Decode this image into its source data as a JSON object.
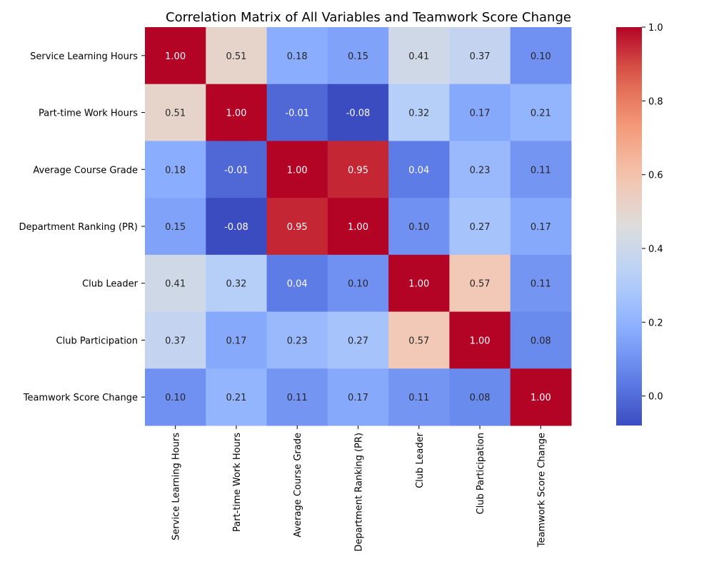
{
  "chart_data": {
    "type": "heatmap",
    "title": "Correlation Matrix of All Variables and Teamwork Score Change",
    "variables": [
      "Service Learning Hours",
      "Part-time Work Hours",
      "Average Course Grade",
      "Department Ranking (PR)",
      "Club Leader",
      "Club Participation",
      "Teamwork Score Change"
    ],
    "matrix": [
      [
        1.0,
        0.51,
        0.18,
        0.15,
        0.41,
        0.37,
        0.1
      ],
      [
        0.51,
        1.0,
        -0.01,
        -0.08,
        0.32,
        0.17,
        0.21
      ],
      [
        0.18,
        -0.01,
        1.0,
        0.95,
        0.04,
        0.23,
        0.11
      ],
      [
        0.15,
        -0.08,
        0.95,
        1.0,
        0.1,
        0.27,
        0.17
      ],
      [
        0.41,
        0.32,
        0.04,
        0.1,
        1.0,
        0.57,
        0.11
      ],
      [
        0.37,
        0.17,
        0.23,
        0.27,
        0.57,
        1.0,
        0.08
      ],
      [
        0.1,
        0.21,
        0.11,
        0.17,
        0.11,
        0.08,
        1.0
      ]
    ],
    "colormap": "coolwarm",
    "value_range": [
      -0.08,
      1.0
    ],
    "colorbar_ticks": [
      "0.0",
      "0.2",
      "0.4",
      "0.6",
      "0.8",
      "1.0"
    ],
    "colorbar_tick_values": [
      0.0,
      0.2,
      0.4,
      0.6,
      0.8,
      1.0
    ],
    "annotation_format": "2 decimals"
  }
}
